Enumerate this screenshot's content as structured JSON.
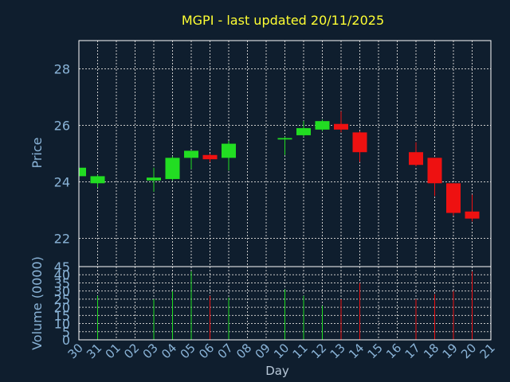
{
  "chart_data": {
    "type": "candlestick",
    "title": "MGPI - last updated 20/11/2025",
    "xlabel": "Day",
    "price_panel": {
      "ylabel": "Price",
      "ylim": [
        21.0,
        29.0
      ],
      "yticks": [
        22,
        24,
        26,
        28
      ],
      "grid": true
    },
    "volume_panel": {
      "ylabel": "Volume (0000)",
      "ylim": [
        0,
        45
      ],
      "yticks": [
        0,
        5,
        10,
        15,
        20,
        25,
        30,
        35,
        40,
        45
      ],
      "grid": true
    },
    "x_ticks": [
      "30",
      "31",
      "01",
      "02",
      "03",
      "04",
      "05",
      "06",
      "07",
      "08",
      "09",
      "10",
      "11",
      "12",
      "13",
      "14",
      "15",
      "16",
      "17",
      "18",
      "19",
      "20",
      "21"
    ],
    "candles": [
      {
        "x": "30",
        "open": 24.2,
        "high": 24.55,
        "low": 24.1,
        "close": 24.5,
        "volume": 0
      },
      {
        "x": "31",
        "open": 23.95,
        "high": 24.25,
        "low": 23.8,
        "close": 24.2,
        "volume": 27
      },
      {
        "x": "03",
        "open": 24.05,
        "high": 24.5,
        "low": 23.65,
        "close": 24.15,
        "volume": 25
      },
      {
        "x": "04",
        "open": 24.1,
        "high": 24.9,
        "low": 24.05,
        "close": 24.85,
        "volume": 30
      },
      {
        "x": "05",
        "open": 24.85,
        "high": 25.1,
        "low": 24.45,
        "close": 25.1,
        "volume": 42
      },
      {
        "x": "06",
        "open": 24.95,
        "high": 25.0,
        "low": 24.7,
        "close": 24.8,
        "volume": 27
      },
      {
        "x": "07",
        "open": 24.85,
        "high": 25.45,
        "low": 24.4,
        "close": 25.35,
        "volume": 26
      },
      {
        "x": "10",
        "open": 25.5,
        "high": 25.6,
        "low": 24.95,
        "close": 25.55,
        "volume": 31
      },
      {
        "x": "11",
        "open": 25.65,
        "high": 26.15,
        "low": 25.6,
        "close": 25.9,
        "volume": 27
      },
      {
        "x": "12",
        "open": 25.85,
        "high": 26.2,
        "low": 25.8,
        "close": 26.15,
        "volume": 21
      },
      {
        "x": "13",
        "open": 26.05,
        "high": 26.5,
        "low": 25.75,
        "close": 25.85,
        "volume": 25
      },
      {
        "x": "14",
        "open": 25.75,
        "high": 25.8,
        "low": 24.7,
        "close": 25.05,
        "volume": 35
      },
      {
        "x": "17",
        "open": 25.05,
        "high": 25.4,
        "low": 24.55,
        "close": 24.6,
        "volume": 25
      },
      {
        "x": "18",
        "open": 24.85,
        "high": 24.85,
        "low": 23.5,
        "close": 23.95,
        "volume": 28
      },
      {
        "x": "19",
        "open": 23.95,
        "high": 23.95,
        "low": 22.8,
        "close": 22.9,
        "volume": 30
      },
      {
        "x": "20",
        "open": 22.95,
        "high": 23.55,
        "low": 22.6,
        "close": 22.7,
        "volume": 42
      }
    ]
  },
  "colors": {
    "background": "#0f1e2e",
    "frame": "#ffffff",
    "grid": "#c8c8c8",
    "title": "#ffff33",
    "axis_label": "#8ab4d8",
    "up": "#22dd22",
    "down": "#ee1111"
  }
}
